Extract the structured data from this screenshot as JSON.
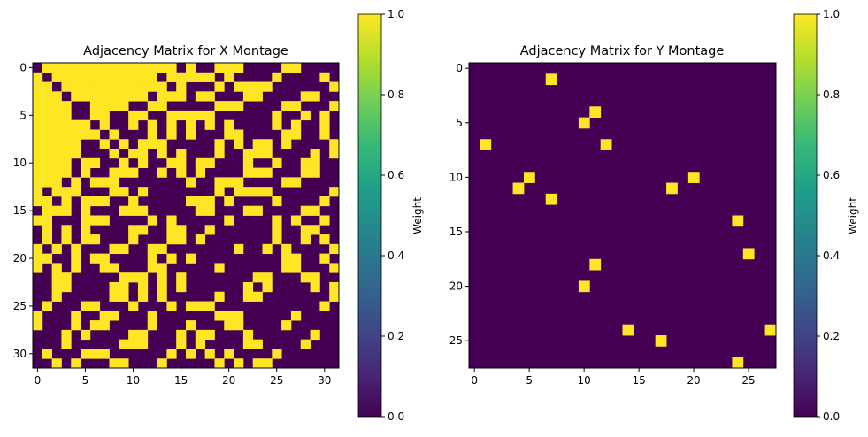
{
  "colors": {
    "zero": "#440154",
    "one": "#fde725",
    "colormap": "viridis"
  },
  "chart_data": [
    {
      "type": "heatmap",
      "title": "Adjacency Matrix for X Montage",
      "size": 32,
      "xticks": [
        0,
        5,
        10,
        15,
        20,
        25,
        30
      ],
      "yticks": [
        0,
        5,
        10,
        15,
        20,
        25,
        30
      ],
      "colorbar": {
        "label": "Weight",
        "range": [
          0.0,
          1.0
        ],
        "ticks": [
          "0.0",
          "0.2",
          "0.4",
          "0.6",
          "0.8",
          "1.0"
        ]
      },
      "matrix": [
        "01111111111111101001110000110000",
        "10111111111110111110100001000010",
        "11011111111111010001011110000001",
        "11101111111101110110001100001100",
        "11110011110011000001110000110001",
        "11110011001100111110000001001010",
        "11111101001010101010100001010010",
        "11111110100010101000110000110010",
        "11111001010111000001010110100001",
        "11111000101101010001001110000101",
        "11110110010100110110001001001100",
        "11110100111001010100001110001100",
        "11101011100000001001110000110000",
        "10111000110100000001011110000001",
        "11010111001000001110100001000010",
        "01110100011100000110001100001100",
        "11000111000010100000100001010010",
        "01010100001100110010000001001100",
        "01010110001000110100000001001010",
        "10101000110011000000010010100001",
        "11001011000010101000000000110010",
        "10101001100011000001000000110001",
        "00110000011101010000000110001100",
        "00110000110101010000001010000101",
        "00100000110101000001001100000001",
        "01000110001000101110000000000010",
        "10001001100010000001110000010000",
        "10001011000010001000110000100000",
        "00010100001100010110001000000100",
        "00010000011100010100001100001000",
        "01000111000000101010100001000000",
        "00101000110001000001010110000000"
      ]
    },
    {
      "type": "heatmap",
      "title": "Adjacency Matrix for Y Montage",
      "size": 28,
      "xticks": [
        0,
        5,
        10,
        15,
        20,
        25
      ],
      "yticks": [
        0,
        5,
        10,
        15,
        20,
        25
      ],
      "colorbar": {
        "label": "Weight",
        "range": [
          0.0,
          1.0
        ],
        "ticks": [
          "0.0",
          "0.2",
          "0.4",
          "0.6",
          "0.8",
          "1.0"
        ]
      },
      "nonzero_cells_row_col": [
        [
          1,
          7
        ],
        [
          4,
          11
        ],
        [
          5,
          10
        ],
        [
          7,
          1
        ],
        [
          7,
          12
        ],
        [
          10,
          5
        ],
        [
          10,
          20
        ],
        [
          11,
          4
        ],
        [
          11,
          18
        ],
        [
          12,
          7
        ],
        [
          14,
          24
        ],
        [
          17,
          25
        ],
        [
          18,
          11
        ],
        [
          20,
          10
        ],
        [
          24,
          14
        ],
        [
          24,
          27
        ],
        [
          25,
          17
        ],
        [
          27,
          24
        ]
      ],
      "nonzero_value": 1
    }
  ]
}
